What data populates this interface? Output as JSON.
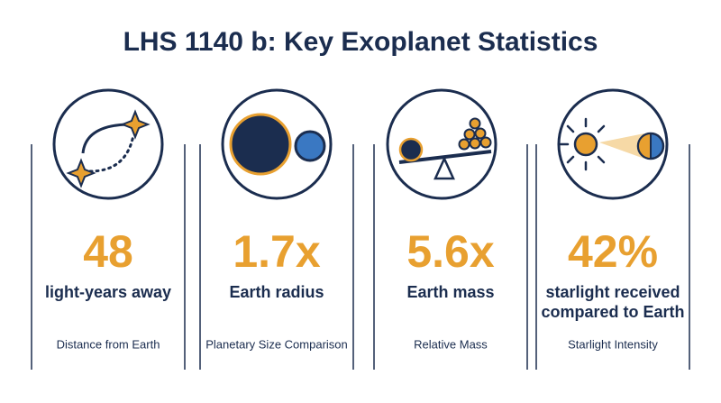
{
  "title": "LHS 1140 b: Key Exoplanet Statistics",
  "cards": [
    {
      "value": "48",
      "label": [
        "light-years away"
      ],
      "caption": "Distance from Earth"
    },
    {
      "value": "1.7x",
      "label": [
        "Earth radius"
      ],
      "caption": "Planetary Size Comparison"
    },
    {
      "value": "5.6x",
      "label": [
        "Earth mass"
      ],
      "caption": "Relative Mass"
    },
    {
      "value": "42%",
      "label": [
        "starlight received",
        "compared to Earth"
      ],
      "caption": "Starlight Intensity"
    }
  ]
}
